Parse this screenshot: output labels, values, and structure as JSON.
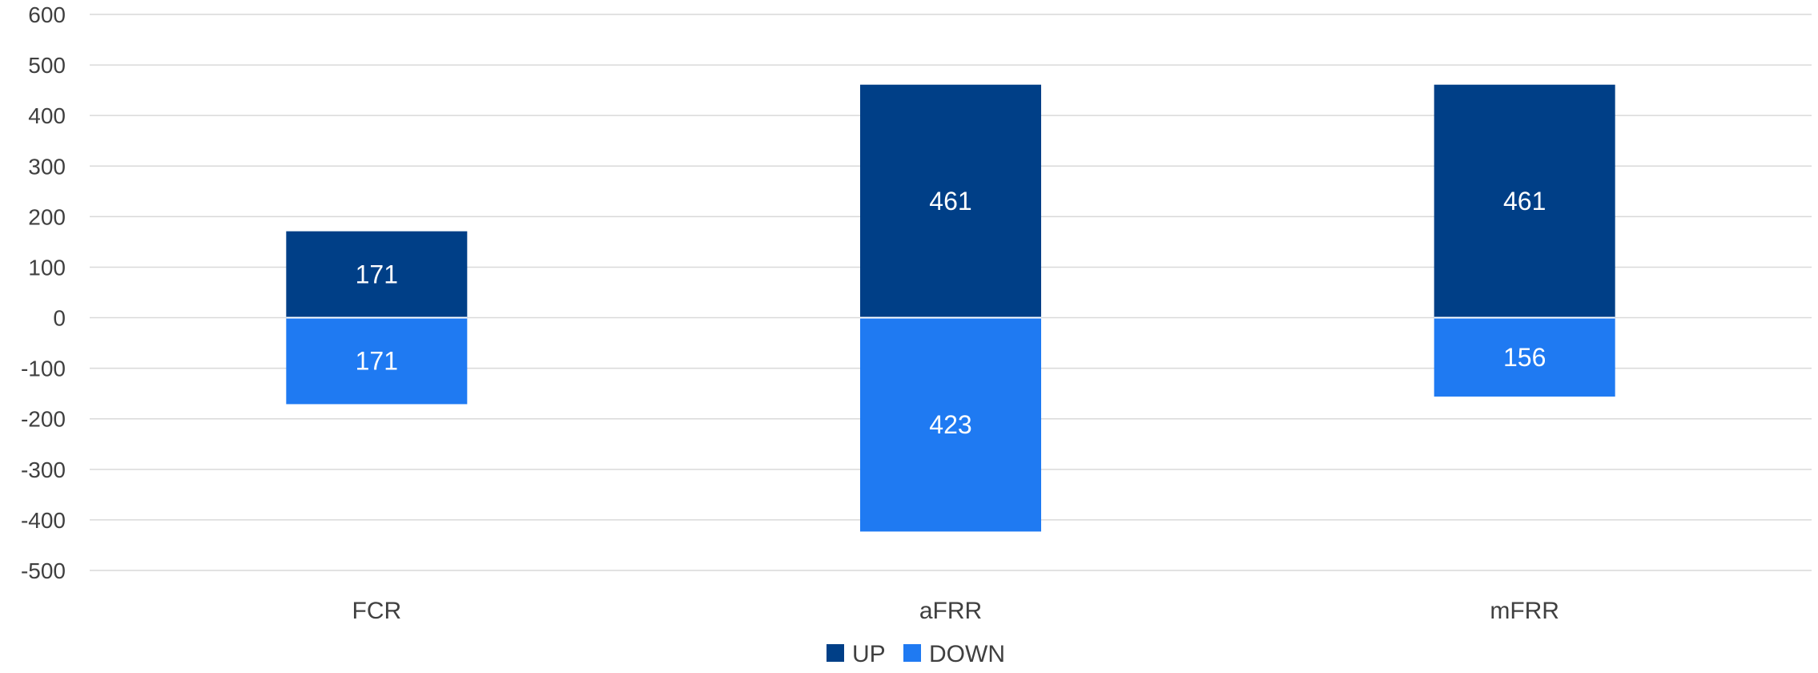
{
  "chart_data": {
    "type": "bar",
    "stacked": true,
    "categories": [
      "FCR",
      "aFRR",
      "mFRR"
    ],
    "series": [
      {
        "name": "UP",
        "values": [
          171,
          461,
          461
        ],
        "labels": [
          "171",
          "461",
          "461"
        ],
        "color": "#003f87"
      },
      {
        "name": "DOWN",
        "values": [
          -171,
          -423,
          -156
        ],
        "labels": [
          "171",
          "423",
          "156"
        ],
        "color": "#1f7af2"
      }
    ],
    "y_ticks": [
      "600",
      "500",
      "400",
      "300",
      "200",
      "100",
      "0",
      "-100",
      "-200",
      "-300",
      "-400",
      "-500"
    ],
    "ylim": [
      -500,
      600
    ],
    "grid": true,
    "gridline_color": "#d9d9d9",
    "legend_position": "bottom"
  }
}
